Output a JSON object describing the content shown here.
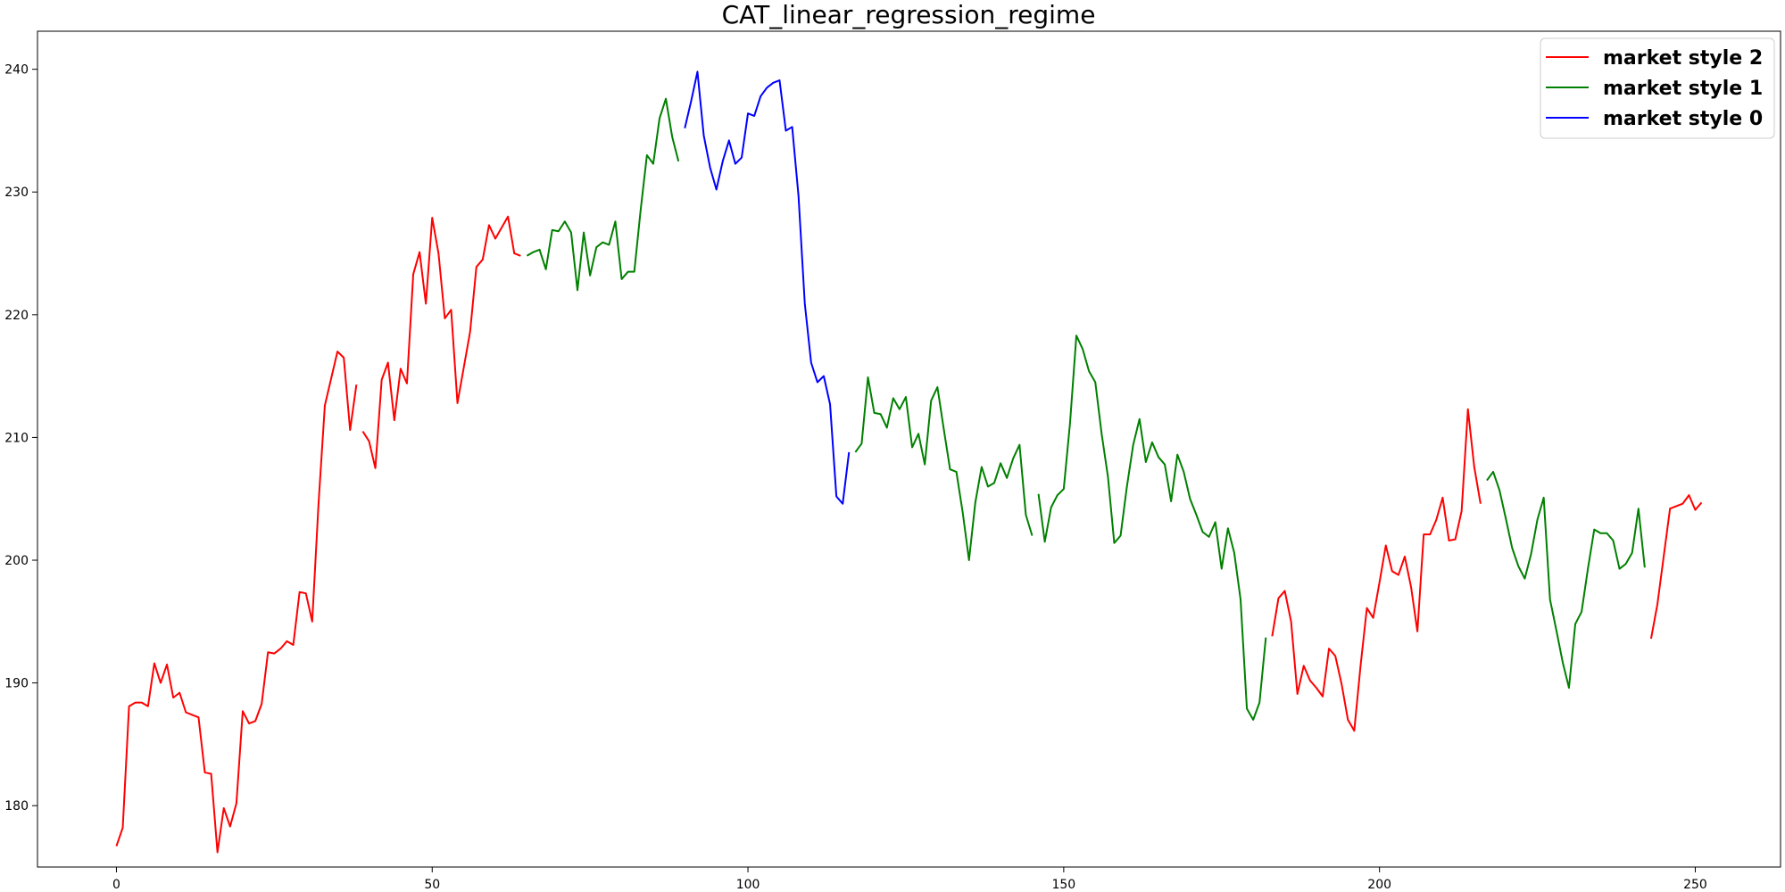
{
  "chart_data": {
    "type": "line",
    "title": "CAT_linear_regression_regime",
    "xlabel": "",
    "ylabel": "",
    "xlim": [
      -12.5,
      263.5
    ],
    "ylim": [
      175,
      243.1
    ],
    "xticks": [
      0,
      50,
      100,
      150,
      200,
      250
    ],
    "yticks": [
      180,
      190,
      200,
      210,
      220,
      230,
      240
    ],
    "grid": false,
    "legend_position": "top-right",
    "colors": {
      "style2": "#ff0000",
      "style1": "#008000",
      "style0": "#0000ff"
    },
    "legend": [
      {
        "label": "market style 2",
        "color": "#ff0000"
      },
      {
        "label": "market style 1",
        "color": "#008000"
      },
      {
        "label": "market style 0",
        "color": "#0000ff"
      }
    ],
    "series": [
      {
        "name": "market style 2",
        "color": "#ff0000",
        "segments": [
          {
            "x0": 0,
            "values": [
              176.7,
              178.2,
              188.1,
              188.4,
              188.4,
              188.1,
              191.6,
              190.0,
              191.5,
              188.8,
              189.2,
              187.6,
              187.4,
              187.2,
              182.7,
              182.6,
              176.2,
              179.8,
              178.3,
              180.2,
              187.7,
              186.7,
              186.9,
              188.3,
              192.5,
              192.4,
              192.8,
              193.4,
              193.1,
              197.4,
              197.3,
              195.0,
              204.6,
              212.6,
              214.8,
              217.0,
              216.5,
              210.6,
              214.3
            ]
          },
          {
            "x0": 39,
            "values": [
              210.5,
              209.7,
              207.5,
              214.7,
              216.1,
              211.4,
              215.6,
              214.4,
              223.3,
              225.1,
              220.9,
              227.9,
              225.0,
              219.7,
              220.4,
              212.8,
              215.7,
              218.6,
              223.9,
              224.5,
              227.3,
              226.2,
              227.1,
              228.0,
              225.0,
              224.8
            ]
          },
          {
            "x0": 183,
            "values": [
              193.8,
              196.9,
              197.5,
              195.0,
              189.1,
              191.4,
              190.2,
              189.6,
              188.9,
              192.8,
              192.2,
              189.9,
              187.0,
              186.1,
              191.4,
              196.1,
              195.3,
              198.2,
              201.2,
              199.1,
              198.8,
              200.3,
              197.8,
              194.2,
              202.1,
              202.1,
              203.3,
              205.1,
              201.6,
              201.7,
              204.0,
              212.3,
              207.6,
              204.6
            ]
          },
          {
            "x0": 243,
            "values": [
              193.6,
              196.4,
              200.3,
              204.2,
              204.4,
              204.6,
              205.3,
              204.1,
              204.7
            ]
          }
        ]
      },
      {
        "name": "market style 1",
        "color": "#008000",
        "segments": [
          {
            "x0": 65,
            "values": [
              224.8,
              225.1,
              225.3,
              223.7,
              226.9,
              226.8,
              227.6,
              226.7,
              222.0,
              226.7,
              223.2,
              225.5,
              225.9,
              225.7,
              227.6,
              222.9,
              223.5,
              223.5,
              228.5,
              233.0,
              232.3,
              236.0,
              237.6,
              234.5,
              232.5
            ]
          },
          {
            "x0": 117,
            "values": [
              208.8,
              209.5,
              214.9,
              212.0,
              211.9,
              210.8,
              213.2,
              212.3,
              213.3,
              209.2,
              210.3,
              207.8,
              213.0,
              214.1,
              210.7,
              207.4,
              207.2,
              203.9,
              200.0,
              204.7,
              207.6,
              206.0,
              206.3,
              207.9,
              206.7,
              208.3,
              209.4,
              203.7,
              202.0
            ]
          },
          {
            "x0": 146,
            "values": [
              205.4,
              201.5,
              204.3,
              205.3,
              205.8,
              211.2,
              218.3,
              217.2,
              215.4,
              214.5,
              210.3,
              206.8,
              201.4,
              202.0,
              206.0,
              209.4,
              211.5,
              208.0,
              209.6,
              208.4,
              207.8,
              204.8,
              208.6,
              207.2,
              205.0,
              203.7,
              202.3,
              201.9,
              203.1,
              199.3,
              202.6,
              200.6,
              196.8,
              187.9,
              187.0,
              188.4,
              193.7
            ]
          },
          {
            "x0": 217,
            "values": [
              206.5,
              207.2,
              205.7,
              203.4,
              201.0,
              199.5,
              198.5,
              200.5,
              203.3,
              205.1,
              196.8,
              194.3,
              191.7,
              189.6,
              194.8,
              195.8,
              199.3,
              202.5,
              202.2,
              202.2,
              201.6,
              199.3,
              199.7,
              200.6,
              204.2,
              199.4
            ]
          }
        ]
      },
      {
        "name": "market style 0",
        "color": "#0000ff",
        "segments": [
          {
            "x0": 90,
            "values": [
              235.2,
              237.4,
              239.8,
              234.6,
              232.0,
              230.2,
              232.5,
              234.2,
              232.3,
              232.8,
              236.4,
              236.2,
              237.8,
              238.5,
              238.9,
              239.1,
              235.0,
              235.3,
              229.7,
              220.9,
              216.1,
              214.5,
              215.0,
              212.7,
              205.2,
              204.6,
              208.8
            ]
          }
        ]
      }
    ]
  }
}
